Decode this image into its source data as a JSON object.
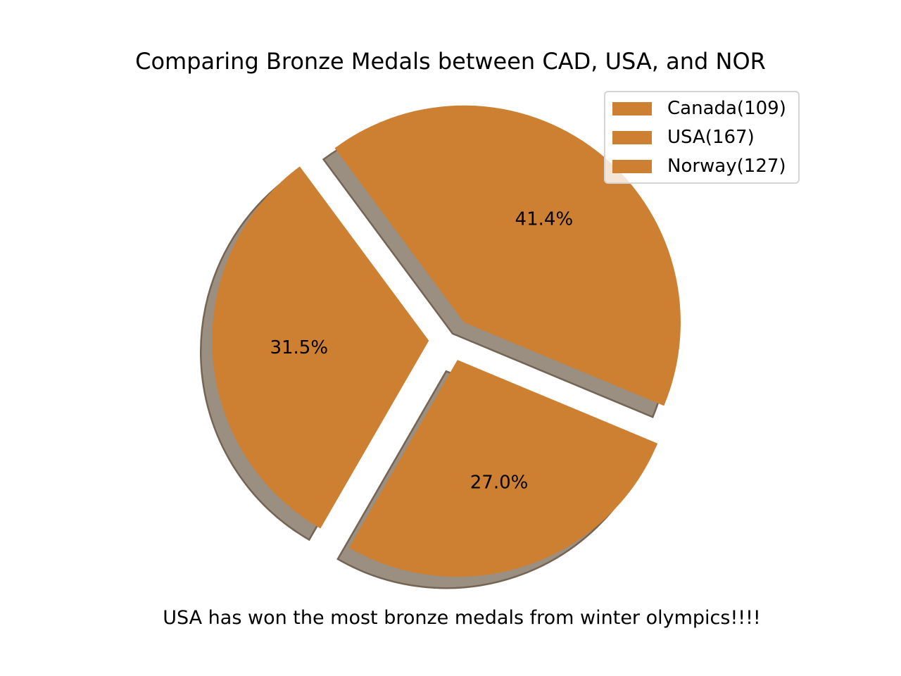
{
  "chart_data": {
    "type": "pie",
    "title": "Comparing Bronze Medals between CAD, USA, and NOR",
    "caption": "USA has won the most bronze medals from winter olympics!!!!",
    "slices": [
      {
        "label": "Canada(109)",
        "value": 109,
        "percent": "27.0%"
      },
      {
        "label": "USA(167)",
        "value": 167,
        "percent": "41.4%"
      },
      {
        "label": "Norway(127)",
        "value": 127,
        "percent": "31.5%"
      }
    ],
    "explode": [
      0.1,
      0.1,
      0.1
    ],
    "shadow": true,
    "start_angle": 240,
    "slice_color": "#cd7f32",
    "shadow_color": "#9b8f82",
    "shadow_edge_color": "#756453",
    "legend_location": "upper-right"
  }
}
